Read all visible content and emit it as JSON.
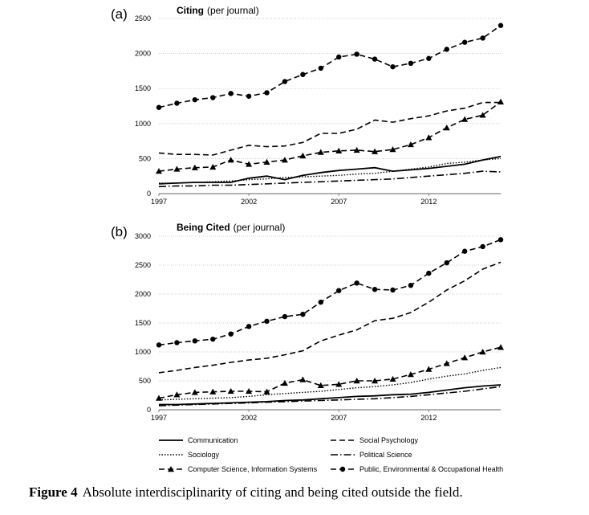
{
  "caption": {
    "label": "Figure 4",
    "text": "Absolute interdisciplinarity of citing and being cited outside the field."
  },
  "legend": {
    "entries": [
      {
        "name": "Communication",
        "style": "solid",
        "marker": "none"
      },
      {
        "name": "Social Psychology",
        "style": "dashed",
        "marker": "none"
      },
      {
        "name": "Sociology",
        "style": "dotted",
        "marker": "none"
      },
      {
        "name": "Political Science",
        "style": "dashdot",
        "marker": "none"
      },
      {
        "name": "Computer Science, Information Systems",
        "style": "dashed",
        "marker": "triangle"
      },
      {
        "name": "Public, Environmental & Occupational Health",
        "style": "dashed",
        "marker": "circle"
      }
    ]
  },
  "chart_data": [
    {
      "type": "line",
      "panel_label": "(a)",
      "title": "Citing",
      "subtitle": "(per journal)",
      "x": [
        1997,
        1998,
        1999,
        2000,
        2001,
        2002,
        2003,
        2004,
        2005,
        2006,
        2007,
        2008,
        2009,
        2010,
        2011,
        2012,
        2013,
        2014,
        2015,
        2016
      ],
      "xticks": [
        1997,
        2002,
        2007,
        2012
      ],
      "xlim": [
        1997,
        2016
      ],
      "ylim": [
        0,
        2500
      ],
      "yticks": [
        0,
        500,
        1000,
        1500,
        2000,
        2500
      ],
      "grid": true,
      "series": [
        {
          "name": "Communication",
          "values": [
            140,
            150,
            160,
            160,
            160,
            220,
            250,
            200,
            260,
            300,
            330,
            350,
            370,
            320,
            340,
            360,
            390,
            420,
            480,
            530
          ]
        },
        {
          "name": "Social Psychology",
          "values": [
            580,
            560,
            560,
            550,
            620,
            690,
            670,
            680,
            730,
            860,
            860,
            920,
            1050,
            1020,
            1070,
            1110,
            1180,
            1220,
            1300,
            1300
          ]
        },
        {
          "name": "Sociology",
          "values": [
            150,
            150,
            160,
            170,
            180,
            200,
            210,
            230,
            240,
            250,
            260,
            280,
            290,
            320,
            350,
            380,
            430,
            450,
            480,
            500
          ]
        },
        {
          "name": "Political Science",
          "values": [
            100,
            110,
            110,
            120,
            120,
            130,
            140,
            150,
            160,
            170,
            180,
            190,
            200,
            210,
            230,
            250,
            270,
            290,
            320,
            310
          ]
        },
        {
          "name": "Computer Science, Information Systems",
          "values": [
            320,
            350,
            370,
            380,
            480,
            420,
            450,
            480,
            540,
            590,
            610,
            620,
            600,
            630,
            700,
            800,
            940,
            1060,
            1120,
            1310
          ]
        },
        {
          "name": "Public, Environmental & Occupational Health",
          "values": [
            1230,
            1290,
            1340,
            1370,
            1430,
            1390,
            1440,
            1600,
            1700,
            1790,
            1950,
            1990,
            1920,
            1810,
            1860,
            1930,
            2060,
            2160,
            2220,
            2400
          ]
        }
      ]
    },
    {
      "type": "line",
      "panel_label": "(b)",
      "title": "Being Cited",
      "subtitle": "(per journal)",
      "x": [
        1997,
        1998,
        1999,
        2000,
        2001,
        2002,
        2003,
        2004,
        2005,
        2006,
        2007,
        2008,
        2009,
        2010,
        2011,
        2012,
        2013,
        2014,
        2015,
        2016
      ],
      "xticks": [
        1997,
        2002,
        2007,
        2012
      ],
      "xlim": [
        1997,
        2016
      ],
      "ylim": [
        0,
        3000
      ],
      "yticks": [
        0,
        500,
        1000,
        1500,
        2000,
        2500,
        3000
      ],
      "grid": true,
      "series": [
        {
          "name": "Communication",
          "values": [
            90,
            90,
            100,
            110,
            120,
            130,
            140,
            160,
            170,
            190,
            210,
            230,
            240,
            260,
            270,
            300,
            340,
            380,
            410,
            430
          ]
        },
        {
          "name": "Social Psychology",
          "values": [
            640,
            680,
            730,
            770,
            820,
            860,
            890,
            950,
            1020,
            1190,
            1290,
            1380,
            1540,
            1580,
            1680,
            1860,
            2070,
            2230,
            2430,
            2550
          ]
        },
        {
          "name": "Sociology",
          "values": [
            170,
            180,
            190,
            200,
            210,
            230,
            260,
            280,
            300,
            320,
            350,
            380,
            400,
            430,
            470,
            530,
            580,
            620,
            680,
            730
          ]
        },
        {
          "name": "Political Science",
          "values": [
            70,
            80,
            90,
            100,
            110,
            120,
            130,
            140,
            150,
            160,
            170,
            180,
            190,
            210,
            230,
            260,
            290,
            320,
            360,
            400
          ]
        },
        {
          "name": "Computer Science, Information Systems",
          "values": [
            200,
            260,
            300,
            310,
            320,
            320,
            310,
            460,
            520,
            420,
            440,
            500,
            500,
            530,
            610,
            700,
            800,
            900,
            1000,
            1080
          ]
        },
        {
          "name": "Public, Environmental & Occupational Health",
          "values": [
            1120,
            1160,
            1190,
            1220,
            1310,
            1440,
            1530,
            1610,
            1650,
            1860,
            2060,
            2190,
            2080,
            2070,
            2150,
            2360,
            2540,
            2740,
            2820,
            2940
          ]
        }
      ]
    }
  ]
}
